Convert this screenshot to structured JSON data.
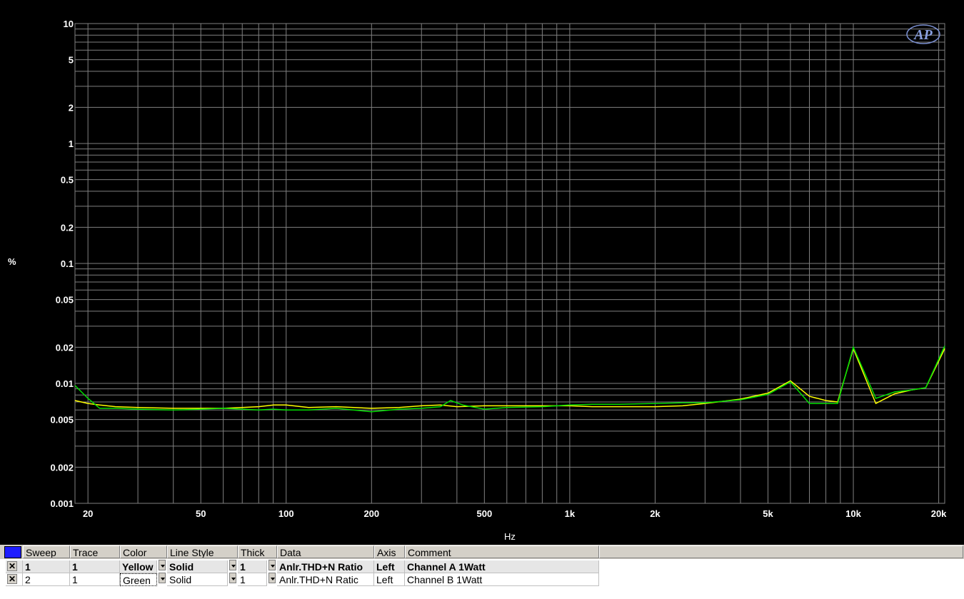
{
  "chart_data": {
    "type": "line",
    "title": "",
    "xlabel": "Hz",
    "ylabel": "%",
    "xscale": "log",
    "yscale": "log",
    "xlim": [
      18,
      21000
    ],
    "ylim": [
      0.001,
      10
    ],
    "grid": true,
    "background": "#000000",
    "grid_color": "#808080",
    "x_ticks": [
      {
        "v": 20,
        "label": "20"
      },
      {
        "v": 50,
        "label": "50"
      },
      {
        "v": 100,
        "label": "100"
      },
      {
        "v": 200,
        "label": "200"
      },
      {
        "v": 500,
        "label": "500"
      },
      {
        "v": 1000,
        "label": "1k"
      },
      {
        "v": 2000,
        "label": "2k"
      },
      {
        "v": 5000,
        "label": "5k"
      },
      {
        "v": 10000,
        "label": "10k"
      },
      {
        "v": 20000,
        "label": "20k"
      }
    ],
    "y_ticks": [
      {
        "v": 10,
        "label": "10"
      },
      {
        "v": 5,
        "label": "5"
      },
      {
        "v": 2,
        "label": "2"
      },
      {
        "v": 1,
        "label": "1"
      },
      {
        "v": 0.5,
        "label": "0.5"
      },
      {
        "v": 0.2,
        "label": "0.2"
      },
      {
        "v": 0.1,
        "label": "0.1"
      },
      {
        "v": 0.05,
        "label": "0.05"
      },
      {
        "v": 0.02,
        "label": "0.02"
      },
      {
        "v": 0.01,
        "label": "0.01"
      },
      {
        "v": 0.005,
        "label": "0.005"
      },
      {
        "v": 0.002,
        "label": "0.002"
      },
      {
        "v": 0.001,
        "label": "0.001"
      }
    ],
    "series": [
      {
        "color": "#ffff00",
        "x": [
          18,
          20,
          22,
          25,
          30,
          40,
          50,
          60,
          70,
          80,
          90,
          100,
          120,
          150,
          200,
          250,
          300,
          350,
          400,
          500,
          600,
          800,
          1000,
          1200,
          1500,
          2000,
          2500,
          3000,
          4000,
          5000,
          6000,
          7000,
          8000,
          8800,
          10000,
          12000,
          14000,
          16000,
          18000,
          21000
        ],
        "y": [
          0.0072,
          0.0068,
          0.0066,
          0.0064,
          0.0063,
          0.0062,
          0.0062,
          0.0062,
          0.0063,
          0.0064,
          0.0066,
          0.0066,
          0.0063,
          0.0064,
          0.0062,
          0.0063,
          0.0065,
          0.0066,
          0.0064,
          0.0065,
          0.0065,
          0.0065,
          0.0065,
          0.0064,
          0.0064,
          0.0064,
          0.0065,
          0.0068,
          0.0074,
          0.0083,
          0.0105,
          0.0078,
          0.0072,
          0.007,
          0.0195,
          0.0068,
          0.0082,
          0.0088,
          0.0092,
          0.0195
        ]
      },
      {
        "color": "#00e000",
        "x": [
          18,
          20,
          22,
          25,
          30,
          40,
          50,
          60,
          70,
          80,
          90,
          100,
          120,
          150,
          200,
          250,
          300,
          350,
          380,
          420,
          500,
          600,
          800,
          1000,
          1200,
          1500,
          2000,
          2500,
          3000,
          4000,
          5000,
          6000,
          7000,
          8000,
          8800,
          10000,
          12000,
          14000,
          16000,
          18000,
          21000
        ],
        "y": [
          0.0096,
          0.0075,
          0.0062,
          0.0062,
          0.0061,
          0.006,
          0.0061,
          0.0062,
          0.0061,
          0.006,
          0.0061,
          0.006,
          0.006,
          0.0062,
          0.0058,
          0.0061,
          0.0062,
          0.0064,
          0.0072,
          0.0066,
          0.0061,
          0.0063,
          0.0064,
          0.0066,
          0.0067,
          0.0067,
          0.0068,
          0.0069,
          0.0069,
          0.0073,
          0.0081,
          0.0103,
          0.0068,
          0.0068,
          0.0068,
          0.02,
          0.0075,
          0.0085,
          0.0088,
          0.0092,
          0.0205
        ]
      }
    ]
  },
  "logo": "AP",
  "legend": {
    "headers": {
      "sweep": "Sweep",
      "trace": "Trace",
      "color": "Color",
      "line_style": "Line Style",
      "thick": "Thick",
      "data": "Data",
      "axis": "Axis",
      "comment": "Comment"
    },
    "rows": [
      {
        "checked": "✕",
        "sweep": "1",
        "trace": "1",
        "color": "Yellow",
        "line_style": "Solid",
        "thick": "1",
        "data": "Anlr.THD+N Ratio",
        "axis": "Left",
        "comment": "Channel A 1Watt"
      },
      {
        "checked": "✕",
        "sweep": "2",
        "trace": "1",
        "color": "Green",
        "line_style": "Solid",
        "thick": "1",
        "data": "Anlr.THD+N Ratic",
        "axis": "Left",
        "comment": "Channel B 1Watt"
      }
    ]
  }
}
